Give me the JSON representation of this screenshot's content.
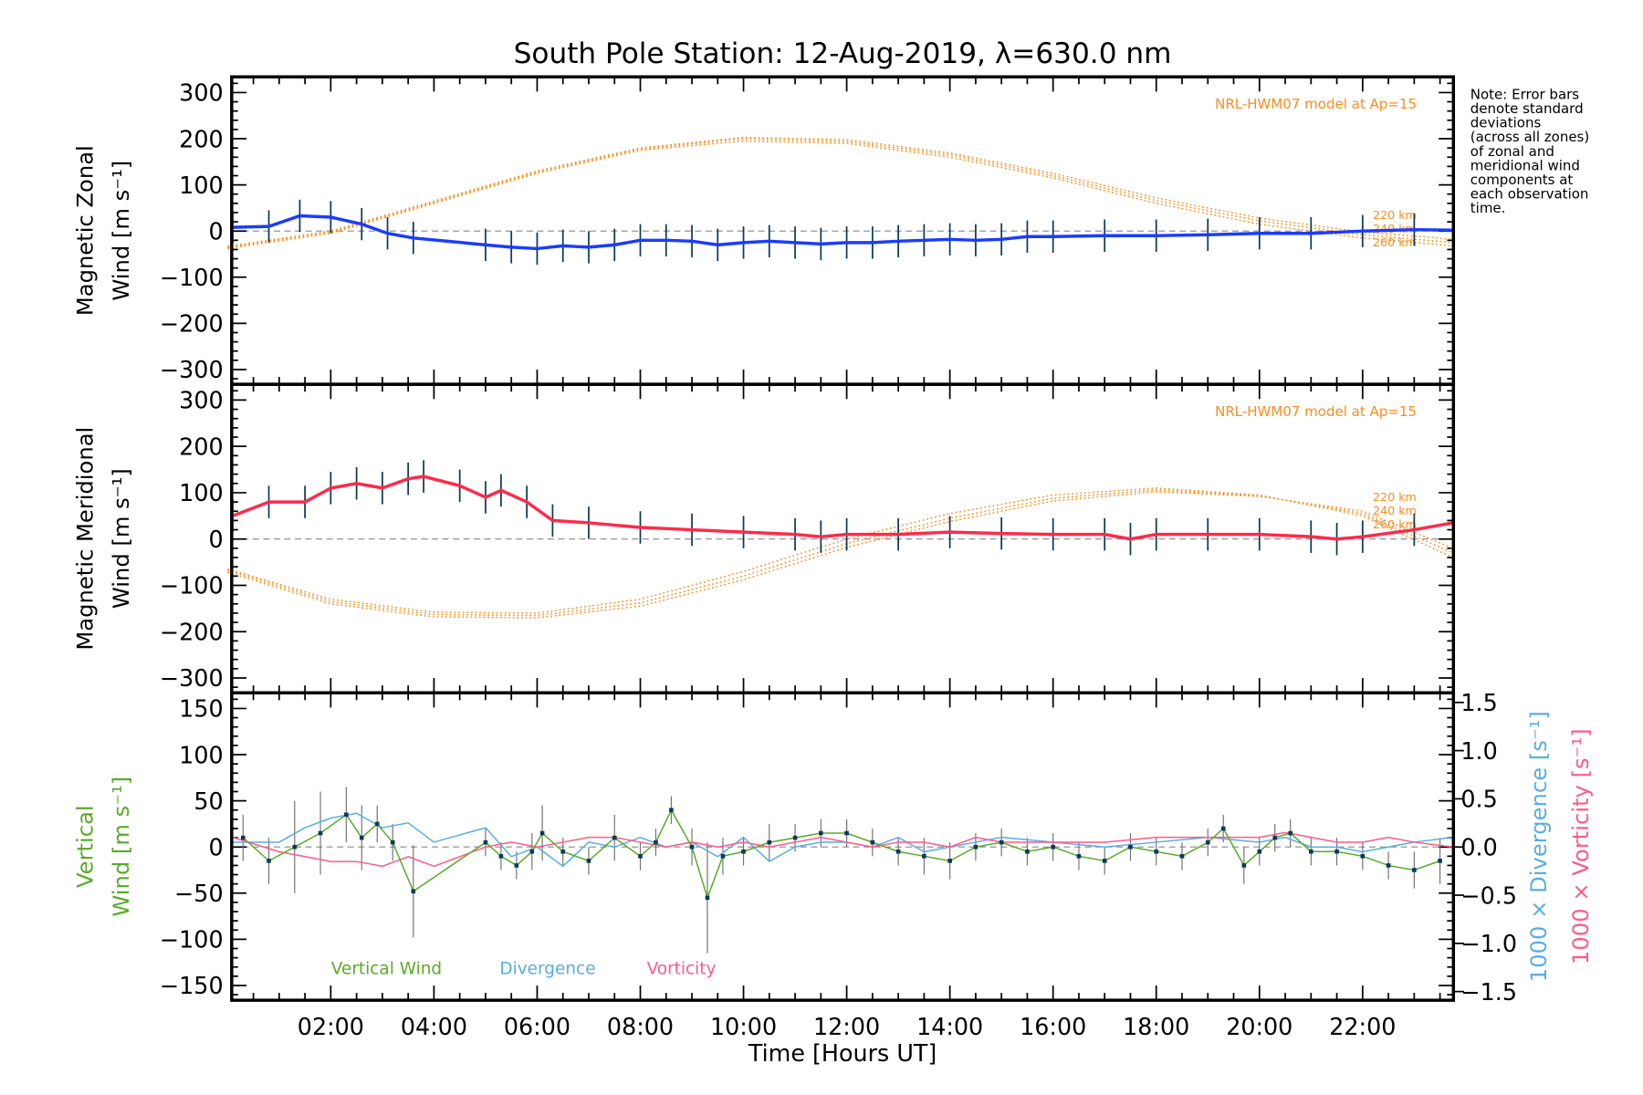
{
  "chart_data": [
    {
      "type": "line",
      "panel": "zonal",
      "title": "South Pole Station: 12-Aug-2019, λ=630.0 nm",
      "ylabel": [
        "Magnetic Zonal",
        "Wind [m s⁻¹]"
      ],
      "ylim": [
        -332,
        334
      ],
      "yticks": [
        300,
        200,
        100,
        0,
        -100,
        -200,
        -300
      ],
      "model_label": "NRL-HWM07 model at Ap=15",
      "altitude_labels": [
        "220 km",
        "240 km",
        "260 km"
      ],
      "mean": {
        "name": "Zonal mean",
        "color": "#1a3cff",
        "x": [
          0.1,
          0.8,
          1.4,
          2.0,
          2.6,
          3.1,
          3.6,
          5.0,
          5.5,
          6.0,
          6.5,
          7.0,
          7.5,
          8.0,
          8.5,
          9.0,
          9.5,
          10,
          10.5,
          11,
          11.5,
          12,
          12.5,
          13,
          13.5,
          14,
          14.5,
          15,
          15.5,
          16,
          17,
          18,
          19,
          20,
          21,
          22,
          23,
          23.75
        ],
        "y": [
          8,
          10,
          33,
          30,
          15,
          -5,
          -15,
          -30,
          -35,
          -38,
          -32,
          -35,
          -30,
          -20,
          -20,
          -22,
          -30,
          -25,
          -22,
          -25,
          -28,
          -25,
          -25,
          -22,
          -20,
          -18,
          -20,
          -18,
          -12,
          -12,
          -10,
          -10,
          -8,
          -5,
          -5,
          0,
          3,
          2
        ]
      },
      "model": [
        {
          "name": "220 km",
          "x": [
            0,
            2,
            4,
            6,
            8,
            10,
            12,
            14,
            16,
            18,
            20,
            22,
            23.75
          ],
          "y": [
            -38,
            -5,
            60,
            125,
            175,
            195,
            190,
            160,
            115,
            60,
            15,
            -15,
            -32
          ]
        },
        {
          "name": "240 km",
          "x": [
            0,
            2,
            4,
            6,
            8,
            10,
            12,
            14,
            16,
            18,
            20,
            22,
            23.75
          ],
          "y": [
            -35,
            -2,
            62,
            128,
            178,
            200,
            194,
            165,
            120,
            66,
            22,
            -8,
            -25
          ]
        },
        {
          "name": "260 km",
          "x": [
            0,
            2,
            4,
            6,
            8,
            10,
            12,
            14,
            16,
            18,
            20,
            22,
            23.75
          ],
          "y": [
            -33,
            0,
            65,
            130,
            180,
            203,
            198,
            169,
            125,
            72,
            28,
            -2,
            -18
          ]
        }
      ]
    },
    {
      "type": "line",
      "panel": "meridional",
      "ylabel": [
        "Magnetic Meridional",
        "Wind [m s⁻¹]"
      ],
      "ylim": [
        -332,
        334
      ],
      "yticks": [
        300,
        200,
        100,
        0,
        -100,
        -200,
        -300
      ],
      "model_label": "NRL-HWM07 model at Ap=15",
      "altitude_labels": [
        "220 km",
        "240 km",
        "260 km"
      ],
      "mean": {
        "name": "Meridional mean",
        "color": "#ff2a4a",
        "x": [
          0.1,
          0.8,
          1.5,
          2.0,
          2.5,
          3.0,
          3.5,
          3.8,
          4.5,
          5.0,
          5.3,
          5.8,
          6.3,
          7,
          8,
          9,
          10,
          11,
          11.5,
          12,
          13,
          14,
          15,
          16,
          17,
          17.5,
          18,
          19,
          20,
          21,
          21.5,
          22,
          23,
          23.75
        ],
        "y": [
          50,
          80,
          80,
          110,
          120,
          110,
          130,
          135,
          115,
          90,
          105,
          80,
          40,
          35,
          25,
          20,
          15,
          10,
          5,
          10,
          10,
          15,
          12,
          10,
          10,
          0,
          10,
          10,
          10,
          5,
          0,
          5,
          20,
          35
        ]
      },
      "model": [
        {
          "name": "220 km",
          "x": [
            0,
            2,
            4,
            6,
            8,
            10,
            12,
            14,
            16,
            18,
            20,
            22,
            23.75
          ],
          "y": [
            -65,
            -130,
            -158,
            -160,
            -130,
            -70,
            0,
            55,
            95,
            110,
            95,
            50,
            -40
          ]
        },
        {
          "name": "240 km",
          "x": [
            0,
            2,
            4,
            6,
            8,
            10,
            12,
            14,
            16,
            18,
            20,
            22,
            23.75
          ],
          "y": [
            -68,
            -135,
            -163,
            -165,
            -138,
            -80,
            -10,
            45,
            88,
            106,
            93,
            55,
            -30
          ]
        },
        {
          "name": "260 km",
          "x": [
            0,
            2,
            4,
            6,
            8,
            10,
            12,
            14,
            16,
            18,
            20,
            22,
            23.75
          ],
          "y": [
            -72,
            -140,
            -168,
            -170,
            -145,
            -88,
            -18,
            38,
            82,
            102,
            92,
            60,
            -20
          ]
        }
      ]
    },
    {
      "type": "line",
      "panel": "vertical",
      "ylabel": [
        "Vertical",
        "Wind [m s⁻¹]"
      ],
      "ylim": [
        -166,
        167
      ],
      "yticks": [
        150,
        100,
        50,
        0,
        -50,
        -100,
        -150
      ],
      "y2label_div": "1000 × Divergence [s⁻¹]",
      "y2label_vor": "1000 × Vorticity [s⁻¹]",
      "y2lim": [
        -1.59,
        1.6
      ],
      "y2ticks": [
        1.5,
        1.0,
        0.5,
        0.0,
        -0.5,
        -1.0,
        -1.5
      ],
      "y2ticklabels": [
        "1.5",
        "1.0",
        "0.5",
        "0.0",
        "−0.5",
        "−1.0",
        "−1.5"
      ],
      "legend": [
        "Vertical Wind",
        "Divergence",
        "Vorticity"
      ],
      "vertical": {
        "color": "#5aaa2a",
        "x": [
          0.3,
          0.8,
          1.3,
          1.8,
          2.3,
          2.6,
          2.9,
          3.2,
          3.6,
          5.0,
          5.3,
          5.6,
          5.9,
          6.1,
          6.5,
          7.0,
          7.5,
          8.0,
          8.3,
          8.6,
          9.0,
          9.3,
          9.6,
          10,
          10.5,
          11,
          11.5,
          12,
          12.5,
          13,
          13.5,
          14,
          14.5,
          15,
          15.5,
          16,
          16.5,
          17,
          17.5,
          18,
          18.5,
          19,
          19.3,
          19.7,
          20,
          20.3,
          20.6,
          21,
          21.5,
          22,
          22.5,
          23,
          23.5
        ],
        "y": [
          10,
          -15,
          0,
          15,
          35,
          10,
          25,
          5,
          -48,
          5,
          -10,
          -20,
          -5,
          15,
          -5,
          -15,
          10,
          -10,
          5,
          40,
          0,
          -55,
          -10,
          -5,
          5,
          10,
          15,
          15,
          5,
          -5,
          -10,
          -15,
          0,
          5,
          -5,
          0,
          -10,
          -15,
          0,
          -5,
          -10,
          5,
          20,
          -20,
          -5,
          10,
          15,
          -5,
          -5,
          -10,
          -20,
          -25,
          -15
        ],
        "err": [
          25,
          25,
          50,
          45,
          30,
          35,
          20,
          20,
          50,
          15,
          15,
          15,
          20,
          30,
          15,
          15,
          25,
          15,
          15,
          15,
          20,
          60,
          20,
          15,
          20,
          15,
          15,
          15,
          15,
          15,
          20,
          20,
          15,
          15,
          15,
          15,
          15,
          15,
          15,
          15,
          15,
          15,
          15,
          20,
          15,
          15,
          15,
          15,
          15,
          15,
          15,
          20,
          25
        ]
      },
      "divergence": {
        "color": "#5aaee0",
        "x": [
          0.1,
          1,
          1.5,
          2,
          2.5,
          3,
          3.5,
          4,
          5,
          5.5,
          6,
          6.5,
          7,
          7.5,
          8,
          8.5,
          9,
          9.5,
          10,
          10.5,
          11,
          11.5,
          12,
          12.5,
          13,
          13.5,
          14,
          14.5,
          15,
          16,
          17,
          18,
          19,
          20,
          20.5,
          21,
          21.5,
          22,
          22.5,
          23,
          23.75
        ],
        "y": [
          0.05,
          0.05,
          0.2,
          0.3,
          0.35,
          0.2,
          0.25,
          0.05,
          0.2,
          -0.1,
          0.0,
          -0.2,
          0.05,
          0.0,
          0.1,
          0.0,
          0.05,
          -0.1,
          0.1,
          -0.15,
          0.0,
          0.05,
          0.05,
          0.0,
          0.1,
          -0.05,
          0.0,
          0.05,
          0.1,
          0.05,
          0.0,
          0.05,
          0.1,
          0.05,
          0.1,
          0.0,
          0.0,
          -0.05,
          0.0,
          0.05,
          0.1
        ]
      },
      "vorticity": {
        "color": "#ff5a8a",
        "x": [
          0.1,
          1,
          1.5,
          2,
          2.5,
          3,
          3.5,
          4,
          5,
          5.5,
          6,
          6.5,
          7,
          7.5,
          8,
          8.5,
          9,
          9.5,
          10,
          10.5,
          11,
          11.5,
          12,
          12.5,
          13,
          13.5,
          14,
          14.5,
          15,
          16,
          17,
          18,
          19,
          20,
          20.5,
          21,
          21.5,
          22,
          22.5,
          23,
          23.75
        ],
        "y": [
          0.1,
          -0.05,
          -0.1,
          -0.15,
          -0.15,
          -0.2,
          -0.1,
          -0.2,
          0.0,
          0.05,
          0.0,
          0.05,
          0.1,
          0.1,
          0.05,
          0.0,
          0.05,
          0.0,
          0.05,
          0.0,
          0.05,
          0.1,
          0.05,
          0.0,
          0.05,
          0.05,
          0.0,
          0.1,
          0.05,
          0.05,
          0.05,
          0.1,
          0.1,
          0.1,
          0.15,
          0.1,
          0.05,
          0.05,
          0.1,
          0.05,
          0.0
        ]
      }
    }
  ],
  "xaxis": {
    "label": "Time [Hours UT]",
    "xlim": [
      0.08,
      23.76
    ],
    "ticks": [
      2,
      4,
      6,
      8,
      10,
      12,
      14,
      16,
      18,
      20,
      22
    ],
    "ticklabels": [
      "02:00",
      "04:00",
      "06:00",
      "08:00",
      "10:00",
      "12:00",
      "14:00",
      "16:00",
      "18:00",
      "20:00",
      "22:00"
    ]
  },
  "note": [
    "Note: Error bars",
    "denote standard",
    "deviations",
    "(across all zones)",
    "of zonal and",
    "meridional wind",
    "components at",
    "each observation",
    "time."
  ],
  "colors": {
    "model": "#ff8c1a",
    "zero": "#888888",
    "errbar": "#707070",
    "point": "#0a3a5a"
  }
}
